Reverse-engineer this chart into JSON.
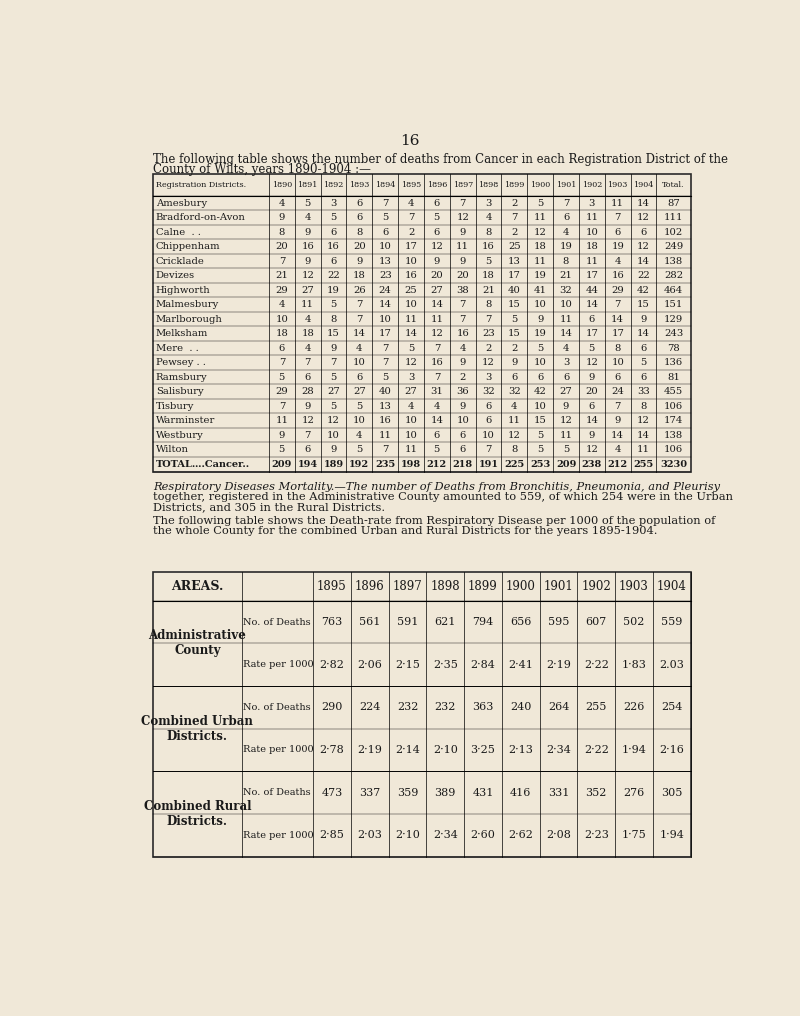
{
  "page_number": "16",
  "bg_color": "#f0e8d8",
  "intro_text1": "The following table shows the number of deaths from Cancer in each Registration District of the",
  "intro_text2": "County of Wilts, years 1890-1904 :—",
  "table1": {
    "headers": [
      "Registration Districts.",
      "1890",
      "1891",
      "1892",
      "1893",
      "1894",
      "1895",
      "1896",
      "1897",
      "1898",
      "1899",
      "1900",
      "1901",
      "1902",
      "1903",
      "1904",
      "Total."
    ],
    "rows": [
      [
        "Amesbury",
        "4",
        "5",
        "3",
        "6",
        "7",
        "4",
        "6",
        "7",
        "3",
        "2",
        "5",
        "7",
        "3",
        "11",
        "14",
        "87"
      ],
      [
        "Bradford-on-Avon",
        "9",
        "4",
        "5",
        "6",
        "5",
        "7",
        "5",
        "12",
        "4",
        "7",
        "11",
        "6",
        "11",
        "7",
        "12",
        "111"
      ],
      [
        "Calne  . .",
        "8",
        "9",
        "6",
        "8",
        "6",
        "2",
        "6",
        "9",
        "8",
        "2",
        "12",
        "4",
        "10",
        "6",
        "6",
        "102"
      ],
      [
        "Chippenham",
        "20",
        "16",
        "16",
        "20",
        "10",
        "17",
        "12",
        "11",
        "16",
        "25",
        "18",
        "19",
        "18",
        "19",
        "12",
        "249"
      ],
      [
        "Cricklade",
        "7",
        "9",
        "6",
        "9",
        "13",
        "10",
        "9",
        "9",
        "5",
        "13",
        "11",
        "8",
        "11",
        "4",
        "14",
        "138"
      ],
      [
        "Devizes",
        "21",
        "12",
        "22",
        "18",
        "23",
        "16",
        "20",
        "20",
        "18",
        "17",
        "19",
        "21",
        "17",
        "16",
        "22",
        "282"
      ],
      [
        "Highworth",
        "29",
        "27",
        "19",
        "26",
        "24",
        "25",
        "27",
        "38",
        "21",
        "40",
        "41",
        "32",
        "44",
        "29",
        "42",
        "464"
      ],
      [
        "Malmesbury",
        "4",
        "11",
        "5",
        "7",
        "14",
        "10",
        "14",
        "7",
        "8",
        "15",
        "10",
        "10",
        "14",
        "7",
        "15",
        "151"
      ],
      [
        "Marlborough",
        "10",
        "4",
        "8",
        "7",
        "10",
        "11",
        "11",
        "7",
        "7",
        "5",
        "9",
        "11",
        "6",
        "14",
        "9",
        "129"
      ],
      [
        "Melksham",
        "18",
        "18",
        "15",
        "14",
        "17",
        "14",
        "12",
        "16",
        "23",
        "15",
        "19",
        "14",
        "17",
        "17",
        "14",
        "243"
      ],
      [
        "Mere  . .",
        "6",
        "4",
        "9",
        "4",
        "7",
        "5",
        "7",
        "4",
        "2",
        "2",
        "5",
        "4",
        "5",
        "8",
        "6",
        "78"
      ],
      [
        "Pewsey . .",
        "7",
        "7",
        "7",
        "10",
        "7",
        "12",
        "16",
        "9",
        "12",
        "9",
        "10",
        "3",
        "12",
        "10",
        "5",
        "136"
      ],
      [
        "Ramsbury",
        "5",
        "6",
        "5",
        "6",
        "5",
        "3",
        "7",
        "2",
        "3",
        "6",
        "6",
        "6",
        "9",
        "6",
        "6",
        "81"
      ],
      [
        "Salisbury",
        "29",
        "28",
        "27",
        "27",
        "40",
        "27",
        "31",
        "36",
        "32",
        "32",
        "42",
        "27",
        "20",
        "24",
        "33",
        "455"
      ],
      [
        "Tisbury",
        "7",
        "9",
        "5",
        "5",
        "13",
        "4",
        "4",
        "9",
        "6",
        "4",
        "10",
        "9",
        "6",
        "7",
        "8",
        "106"
      ],
      [
        "Warminster",
        "11",
        "12",
        "12",
        "10",
        "16",
        "10",
        "14",
        "10",
        "6",
        "11",
        "15",
        "12",
        "14",
        "9",
        "12",
        "174"
      ],
      [
        "Westbury",
        "9",
        "7",
        "10",
        "4",
        "11",
        "10",
        "6",
        "6",
        "10",
        "12",
        "5",
        "11",
        "9",
        "14",
        "14",
        "138"
      ],
      [
        "Wilton",
        "5",
        "6",
        "9",
        "5",
        "7",
        "11",
        "5",
        "6",
        "7",
        "8",
        "5",
        "5",
        "12",
        "4",
        "11",
        "106"
      ],
      [
        "TOTAL….Cancer..",
        "209",
        "194",
        "189",
        "192",
        "235",
        "198",
        "212",
        "218",
        "191",
        "225",
        "253",
        "209",
        "238",
        "212",
        "255",
        "3230"
      ]
    ]
  },
  "respiratory_text1": "Respiratory Diseases Mortality.—The number of Deaths from Bronchitis, Pneumonia, and Pleurisy",
  "respiratory_text2": "together, registered in the Administrative County amounted to 559, of which 254 were in the Urban",
  "respiratory_text3": "Districts, and 305 in the Rural Districts.",
  "respiratory_text4": "The following table shows the Death-rate from Respiratory Disease per 1000 of the population of",
  "respiratory_text5": "the whole County for the combined Urban and Rural Districts for the years 1895-1904.",
  "table2": {
    "headers": [
      "AREAS.",
      "",
      "1895",
      "1896",
      "1897",
      "1898",
      "1899",
      "1900",
      "1901",
      "1902",
      "1903",
      "1904"
    ],
    "rows": [
      [
        "Administrative",
        "No. of Deaths",
        "763",
        "561",
        "591",
        "621",
        "794",
        "656",
        "595",
        "607",
        "502",
        "559"
      ],
      [
        "County",
        "Rate per 1000",
        "2·82",
        "2·06",
        "2·15",
        "2·35",
        "2·84",
        "2·41",
        "2·19",
        "2·22",
        "1·83",
        "2.03"
      ],
      [
        "Combined Urban",
        "No. of Deaths",
        "290",
        "224",
        "232",
        "232",
        "363",
        "240",
        "264",
        "255",
        "226",
        "254"
      ],
      [
        "Districts.",
        "Rate per 1000",
        "2·78",
        "2·19",
        "2·14",
        "2·10",
        "3·25",
        "2·13",
        "2·34",
        "2·22",
        "1·94",
        "2·16"
      ],
      [
        "Combined Rural",
        "No. of Deaths",
        "473",
        "337",
        "359",
        "389",
        "431",
        "416",
        "331",
        "352",
        "276",
        "305"
      ],
      [
        "Districts.",
        "Rate per 1000",
        "2·85",
        "2·03",
        "2·10",
        "2·34",
        "2·60",
        "2·62",
        "2·08",
        "2·23",
        "1·75",
        "1·94"
      ]
    ]
  }
}
